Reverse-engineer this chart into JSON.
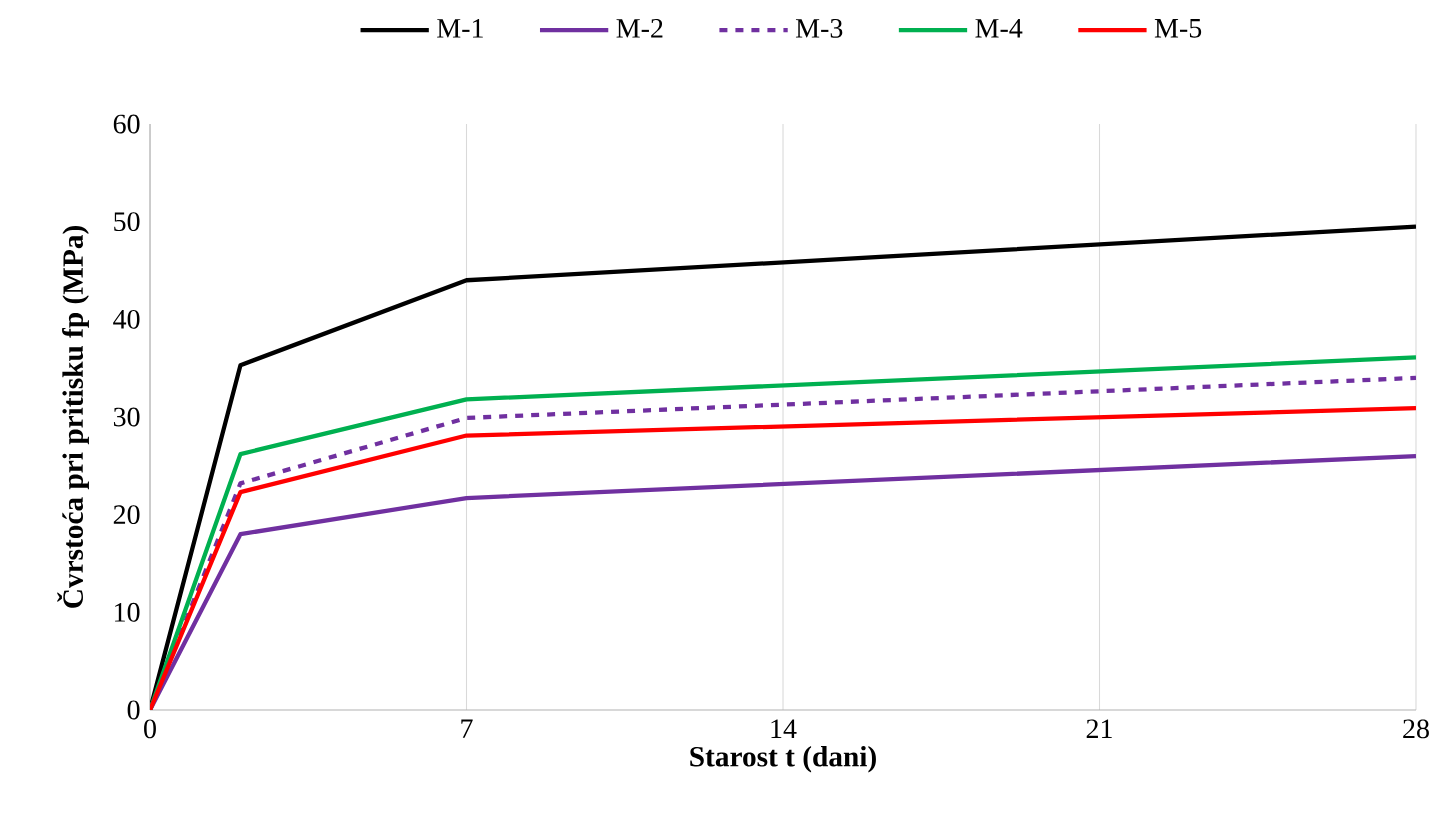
{
  "chart_data": {
    "type": "line",
    "xlabel": "Starost t (dani)",
    "ylabel": "Čvrstoća pri pritisku fp (MPa)",
    "x": [
      0,
      2,
      7,
      28
    ],
    "xlim": [
      0,
      28
    ],
    "xticks": [
      0,
      7,
      14,
      21,
      28
    ],
    "ylim": [
      0,
      60
    ],
    "yticks": [
      0,
      10,
      20,
      30,
      40,
      50,
      60
    ],
    "grid": "x",
    "legend": "top",
    "marker": "none",
    "series": [
      {
        "name": "M-1",
        "color": "#000000",
        "line_style": "solid",
        "values": [
          0,
          35.3,
          44,
          49.5
        ]
      },
      {
        "name": "M-2",
        "color": "#7030a0",
        "line_style": "solid",
        "values": [
          0,
          18,
          21.7,
          26
        ]
      },
      {
        "name": "M-3",
        "color": "#7030a0",
        "line_style": "dashed",
        "values": [
          0,
          23.2,
          29.9,
          34
        ]
      },
      {
        "name": "M-4",
        "color": "#00b050",
        "line_style": "solid",
        "values": [
          0,
          26.2,
          31.8,
          36.1
        ]
      },
      {
        "name": "M-5",
        "color": "#ff0000",
        "line_style": "solid",
        "values": [
          0,
          22.3,
          28.1,
          30.9
        ]
      }
    ]
  }
}
